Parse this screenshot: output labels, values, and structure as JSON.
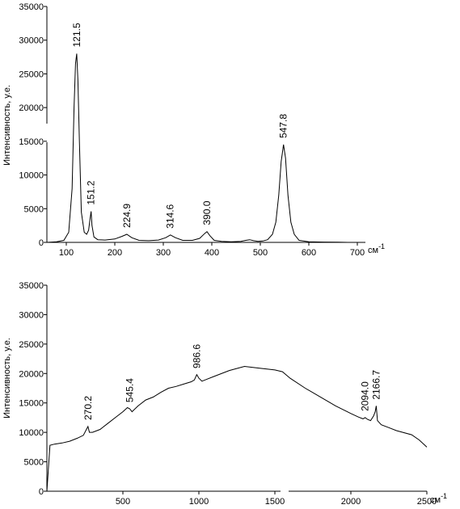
{
  "chart_data": [
    {
      "type": "line",
      "title": "",
      "xlabel": "",
      "ylabel": "Интенсивность, у.е.",
      "x_unit": "см",
      "x_unit_sup": "-1",
      "xlim": [
        60,
        705
      ],
      "ylim": [
        0,
        35000
      ],
      "x_ticks": [
        100,
        200,
        300,
        400,
        500,
        600,
        700
      ],
      "x_tick_labels": [
        "100",
        "200",
        "300",
        "400",
        "500",
        "600",
        "700"
      ],
      "y_ticks": [
        0,
        5000,
        10000,
        15000,
        20000,
        25000,
        30000,
        35000
      ],
      "y_tick_labels": [
        "0",
        "5000",
        "10000",
        "15000",
        "20000",
        "25000",
        "30000",
        "35000"
      ],
      "grid": false,
      "peaks": [
        {
          "x": 121.5,
          "label": "121.5"
        },
        {
          "x": 151.2,
          "label": "151.2"
        },
        {
          "x": 224.9,
          "label": "224.9"
        },
        {
          "x": 314.6,
          "label": "314.6"
        },
        {
          "x": 390.0,
          "label": "390.0"
        },
        {
          "x": 547.8,
          "label": "547.8"
        }
      ],
      "series": [
        {
          "x": [
            60,
            80,
            95,
            105,
            112,
            116,
            119,
            121.5,
            124,
            127,
            131,
            137,
            142,
            146,
            149,
            151.2,
            153,
            157,
            165,
            180,
            200,
            215,
            224.9,
            235,
            250,
            270,
            290,
            305,
            314.6,
            325,
            340,
            360,
            375,
            385,
            390,
            396,
            405,
            420,
            440,
            460,
            470,
            478,
            486,
            495,
            505,
            515,
            525,
            532,
            538,
            543,
            547.8,
            552,
            557,
            563,
            570,
            580,
            600,
            630,
            660,
            680
          ],
          "y": [
            0,
            100,
            300,
            1500,
            8000,
            20000,
            26500,
            28000,
            24000,
            15000,
            4500,
            1500,
            1200,
            1800,
            3500,
            4600,
            2500,
            800,
            400,
            350,
            500,
            900,
            1200,
            700,
            300,
            250,
            350,
            700,
            1100,
            700,
            300,
            300,
            600,
            1300,
            1600,
            1000,
            300,
            150,
            100,
            150,
            300,
            400,
            250,
            150,
            200,
            400,
            1200,
            3000,
            7000,
            12000,
            14500,
            12500,
            7000,
            3000,
            1200,
            300,
            100,
            50,
            20,
            0
          ]
        }
      ]
    },
    {
      "type": "line",
      "title": "",
      "xlabel": "",
      "ylabel": "Интенсивность, у.е.",
      "x_unit": "см",
      "x_unit_sup": "-1",
      "xlim": [
        0,
        2500
      ],
      "ylim": [
        0,
        35000
      ],
      "x_ticks": [
        500,
        1000,
        1500,
        2000,
        2500
      ],
      "x_tick_labels": [
        "500",
        "1000",
        "1500",
        "2000",
        "2500"
      ],
      "y_ticks": [
        0,
        5000,
        10000,
        15000,
        20000,
        25000,
        30000,
        35000
      ],
      "y_tick_labels": [
        "0",
        "5000",
        "10000",
        "15000",
        "20000",
        "25000",
        "30000",
        "35000"
      ],
      "grid": false,
      "peaks": [
        {
          "x": 270.2,
          "label": "270.2"
        },
        {
          "x": 545.4,
          "label": "545.4"
        },
        {
          "x": 986.6,
          "label": "986.6"
        },
        {
          "x": 2094.0,
          "label": "2094.0"
        },
        {
          "x": 2166.7,
          "label": "2166.7"
        }
      ],
      "series": [
        {
          "x": [
            0,
            20,
            50,
            100,
            150,
            200,
            240,
            260,
            270,
            280,
            300,
            350,
            400,
            450,
            500,
            530,
            545,
            560,
            600,
            650,
            700,
            750,
            800,
            850,
            900,
            950,
            970,
            986,
            1000,
            1020,
            1100,
            1200,
            1300,
            1400,
            1500,
            1550,
            1600,
            1700,
            1800,
            1900,
            2000,
            2050,
            2080,
            2094,
            2110,
            2130,
            2150,
            2160,
            2167,
            2175,
            2200,
            2250,
            2300,
            2400,
            2450,
            2500
          ],
          "y": [
            0,
            7800,
            8000,
            8200,
            8500,
            9000,
            9500,
            10500,
            11000,
            10000,
            10000,
            10500,
            11500,
            12500,
            13500,
            14200,
            14000,
            13500,
            14500,
            15500,
            16000,
            16800,
            17500,
            17800,
            18200,
            18600,
            18900,
            19800,
            19200,
            18700,
            19500,
            20500,
            21200,
            20900,
            20600,
            20300,
            19200,
            17500,
            16000,
            14500,
            13200,
            12600,
            12300,
            12500,
            12200,
            12000,
            12800,
            13500,
            14500,
            12000,
            11300,
            10800,
            10300,
            9600,
            8700,
            7500
          ]
        }
      ]
    }
  ]
}
